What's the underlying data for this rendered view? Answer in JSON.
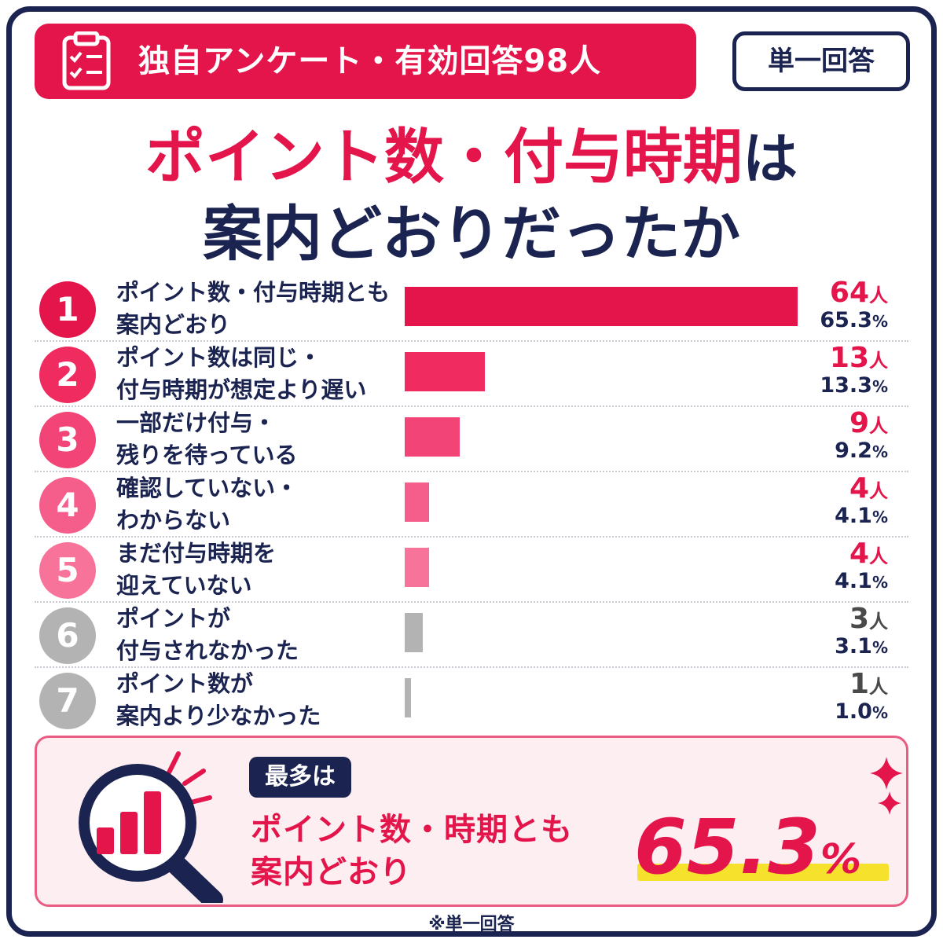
{
  "header": {
    "survey_label": "独自アンケート・有効回答98人",
    "answer_type": "単一回答"
  },
  "title": {
    "line1_red": "ポイント数・付与時期",
    "line1_navy": "は",
    "line2": "案内どおりだったか"
  },
  "chart_data": {
    "type": "bar",
    "orientation": "horizontal",
    "categories": [
      "ポイント数・付与時期とも案内どおり",
      "ポイント数は同じ・付与時期が想定より遅い",
      "一部だけ付与・残りを待っている",
      "確認していない・わからない",
      "まだ付与時期を迎えていない",
      "ポイントが付与されなかった",
      "ポイント数が案内より少なかった"
    ],
    "values": [
      64,
      13,
      9,
      4,
      4,
      3,
      1
    ],
    "percentages": [
      65.3,
      13.3,
      9.2,
      4.1,
      4.1,
      3.1,
      1.0
    ],
    "unit": "人",
    "total": 98
  },
  "rows": [
    {
      "rank": "1",
      "line1": "ポイント数・付与時期とも",
      "line2": "案内どおり",
      "count": "64",
      "unit": "人",
      "pct": "65.3",
      "pct_unit": "%",
      "color": "#e3154a",
      "count_color": "#e3154a"
    },
    {
      "rank": "2",
      "line1": "ポイント数は同じ・",
      "line2": "付与時期が想定より遅い",
      "count": "13",
      "unit": "人",
      "pct": "13.3",
      "pct_unit": "%",
      "color": "#ef2b60",
      "count_color": "#e3154a"
    },
    {
      "rank": "3",
      "line1": "一部だけ付与・",
      "line2": "残りを待っている",
      "count": "9",
      "unit": "人",
      "pct": "9.2",
      "pct_unit": "%",
      "color": "#f24476",
      "count_color": "#e3154a"
    },
    {
      "rank": "4",
      "line1": "確認していない・",
      "line2": "わからない",
      "count": "4",
      "unit": "人",
      "pct": "4.1",
      "pct_unit": "%",
      "color": "#f55e8b",
      "count_color": "#e3154a"
    },
    {
      "rank": "5",
      "line1": "まだ付与時期を",
      "line2": "迎えていない",
      "count": "4",
      "unit": "人",
      "pct": "4.1",
      "pct_unit": "%",
      "color": "#f7739a",
      "count_color": "#e3154a"
    },
    {
      "rank": "6",
      "line1": "ポイントが",
      "line2": "付与されなかった",
      "count": "3",
      "unit": "人",
      "pct": "3.1",
      "pct_unit": "%",
      "color": "#b3b3b3",
      "count_color": "#4a4a4a"
    },
    {
      "rank": "7",
      "line1": "ポイント数が",
      "line2": "案内より少なかった",
      "count": "1",
      "unit": "人",
      "pct": "1.0",
      "pct_unit": "%",
      "color": "#b3b3b3",
      "count_color": "#4a4a4a"
    }
  ],
  "summary": {
    "badge": "最多は",
    "line1": "ポイント数・時期とも",
    "line2": "案内どおり",
    "value": "65.3",
    "unit": "%"
  },
  "footnote": "※単一回答",
  "colors": {
    "accent": "#e3154a",
    "navy": "#1b2450",
    "highlight": "#f6e22c"
  }
}
